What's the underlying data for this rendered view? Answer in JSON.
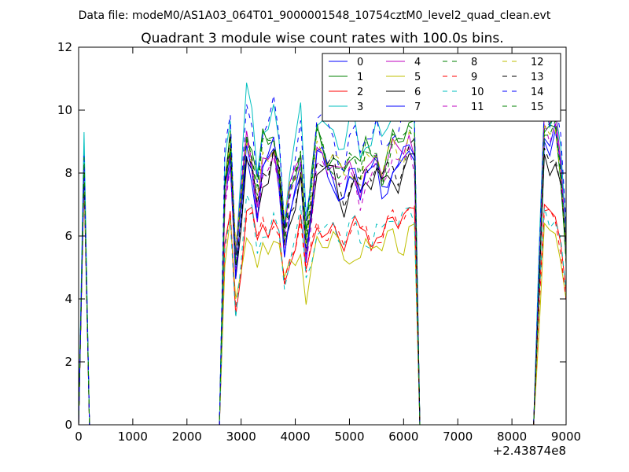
{
  "header": "Data file: modeM0/AS1A03_064T01_9000001548_10754cztM0_level2_quad_clean.evt",
  "chart_data": {
    "type": "line",
    "title": "Quadrant 3 module wise count rates with 100.0s bins.",
    "xlabel": "",
    "ylabel": "",
    "x_offset_label": "+2.43874e8",
    "xlim": [
      0,
      9000
    ],
    "ylim": [
      0,
      12
    ],
    "xticks": [
      0,
      1000,
      2000,
      3000,
      4000,
      5000,
      6000,
      7000,
      8000,
      9000
    ],
    "yticks": [
      0,
      2,
      4,
      6,
      8,
      10,
      12
    ],
    "xtick_labels": [
      "0",
      "1000",
      "2000",
      "3000",
      "4000",
      "5000",
      "6000",
      "7000",
      "8000",
      "9000"
    ],
    "ytick_labels": [
      "0",
      "2",
      "4",
      "6",
      "8",
      "10",
      "12"
    ],
    "grid": false,
    "legend_position": "top-right",
    "segments": [
      {
        "x": [
          100,
          200
        ],
        "shape": [
          1.0,
          0.0
        ]
      },
      {
        "x": [
          2600,
          2700,
          2800,
          2900,
          3000,
          3100,
          3200,
          3300,
          3400,
          3500,
          3600,
          3700,
          3800,
          3900,
          4000,
          4100,
          4200,
          4300,
          4400,
          4500,
          4600,
          4700,
          4800,
          4900,
          5000,
          5100,
          5200,
          5300,
          5400,
          5500,
          5600,
          5700,
          5800,
          5900,
          6000,
          6100,
          6200,
          6300
        ],
        "shape": [
          0.0,
          0.82,
          0.97,
          0.55,
          0.76,
          0.99,
          0.93,
          0.78,
          0.92,
          0.91,
          0.97,
          0.88,
          0.65,
          0.78,
          0.84,
          0.93,
          0.63,
          0.78,
          0.95,
          0.93,
          0.9,
          0.91,
          0.86,
          0.83,
          0.89,
          0.9,
          0.84,
          0.9,
          0.88,
          0.92,
          0.86,
          0.91,
          0.95,
          0.92,
          0.95,
          1.0,
          0.97,
          0.0
        ]
      },
      {
        "x": [
          8400,
          8500,
          8600,
          8700,
          8800,
          8900,
          9000
        ],
        "shape": [
          0.0,
          0.5,
          1.0,
          0.96,
          0.99,
          0.86,
          0.6
        ]
      }
    ],
    "series": [
      {
        "name": "0",
        "color": "#0000ff",
        "style": "solid",
        "peak1": 8.7,
        "peak2": 8.7,
        "peak3": 9.1
      },
      {
        "name": "1",
        "color": "#008000",
        "style": "solid",
        "peak1": 8.5,
        "peak2": 9.6,
        "peak3": 9.3
      },
      {
        "name": "2",
        "color": "#ff0000",
        "style": "solid",
        "peak1": 7.8,
        "peak2": 6.9,
        "peak3": 7.0
      },
      {
        "name": "3",
        "color": "#00bfbf",
        "style": "solid",
        "peak1": 9.3,
        "peak2": 10.4,
        "peak3": 10.2
      },
      {
        "name": "4",
        "color": "#bf00bf",
        "style": "solid",
        "peak1": 8.3,
        "peak2": 9.2,
        "peak3": 10.0
      },
      {
        "name": "5",
        "color": "#bfbf00",
        "style": "solid",
        "peak1": 7.9,
        "peak2": 6.3,
        "peak3": 6.4
      },
      {
        "name": "6",
        "color": "#000000",
        "style": "solid",
        "peak1": 8.1,
        "peak2": 8.6,
        "peak3": 8.6
      },
      {
        "name": "7",
        "color": "#0000ff",
        "style": "solid",
        "peak1": 8.2,
        "peak2": 8.9,
        "peak3": 9.0
      },
      {
        "name": "8",
        "color": "#008000",
        "style": "dashed",
        "peak1": 8.4,
        "peak2": 9.5,
        "peak3": 9.4
      },
      {
        "name": "9",
        "color": "#ff0000",
        "style": "dashed",
        "peak1": 8.1,
        "peak2": 6.9,
        "peak3": 6.8
      },
      {
        "name": "10",
        "color": "#00bfbf",
        "style": "dashed",
        "peak1": 8.4,
        "peak2": 6.9,
        "peak3": 6.9
      },
      {
        "name": "11",
        "color": "#bf00bf",
        "style": "dashed",
        "peak1": 8.3,
        "peak2": 8.8,
        "peak3": 9.6
      },
      {
        "name": "12",
        "color": "#bfbf00",
        "style": "dashed",
        "peak1": 8.2,
        "peak2": 9.3,
        "peak3": 9.5
      },
      {
        "name": "13",
        "color": "#000000",
        "style": "dashed",
        "peak1": 8.0,
        "peak2": 8.9,
        "peak3": 8.8
      },
      {
        "name": "14",
        "color": "#0000ff",
        "style": "dashed",
        "peak1": 8.6,
        "peak2": 10.2,
        "peak3": 10.1
      },
      {
        "name": "15",
        "color": "#008000",
        "style": "dashed",
        "peak1": 8.5,
        "peak2": 9.4,
        "peak3": 9.2
      }
    ]
  }
}
